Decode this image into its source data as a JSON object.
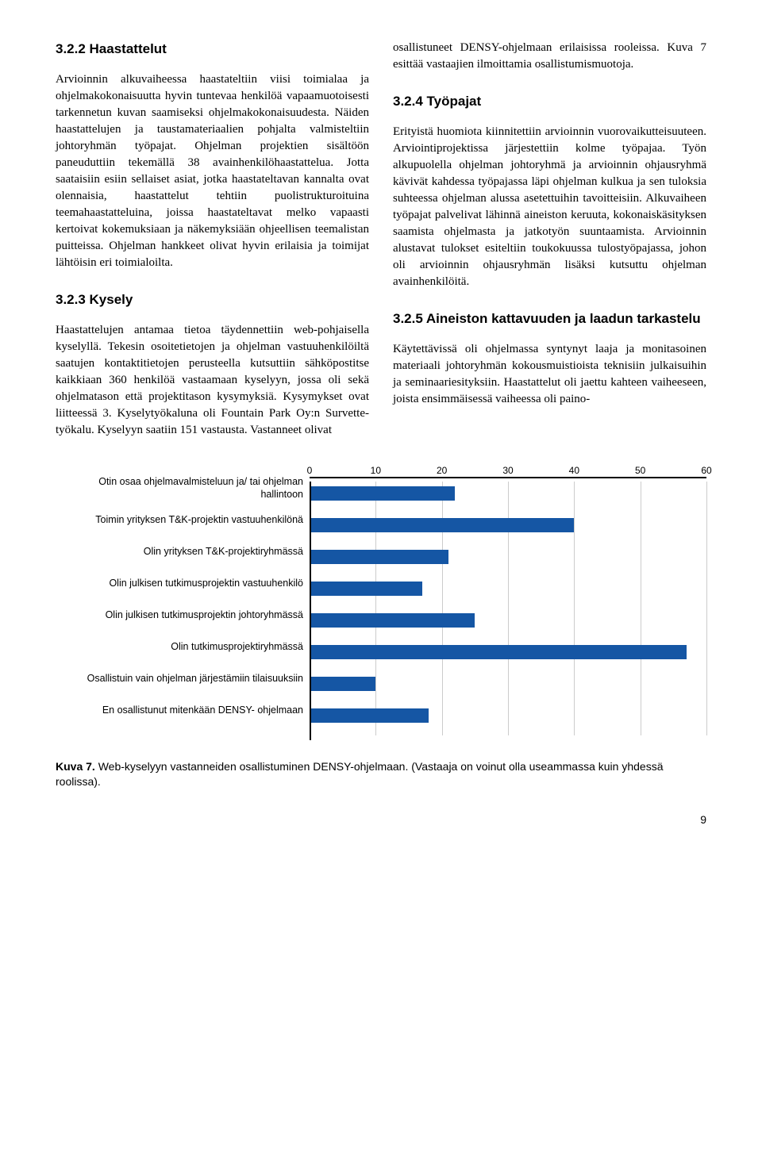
{
  "left": {
    "h1": "3.2.2 Haastattelut",
    "p1": "Arvioinnin alkuvaiheessa haastateltiin viisi toimialaa ja ohjelmakokonaisuutta hyvin tuntevaa henkilöä vapaamuotoisesti tarkennetun kuvan saamiseksi ohjelmakokonaisuudesta. Näiden haastattelujen ja taustamateriaalien pohjalta valmisteltiin johtoryhmän työpajat. Ohjelman projektien sisältöön paneuduttiin tekemällä 38 avainhenkilöhaastattelua. Jotta saataisiin esiin sellaiset asiat, jotka haastateltavan kannalta ovat olennaisia, haastattelut tehtiin puolistrukturoituina teemahaastatteluina, joissa haastateltavat melko vapaasti kertoivat kokemuksiaan ja näkemyksiään ohjeellisen teemalistan puitteissa. Ohjelman hankkeet olivat hyvin erilaisia ja toimijat lähtöisin eri toimialoilta.",
    "h2": "3.2.3 Kysely",
    "p2": "Haastattelujen antamaa tietoa täydennettiin web-pohjaisella kyselyllä. Tekesin osoitetietojen ja ohjelman vastuuhenkilöiltä saatujen kontaktitietojen perusteella kutsuttiin sähköpostitse kaikkiaan 360 henkilöä vastaamaan kyselyyn, jossa oli sekä ohjelmatason että projektitason kysymyksiä. Kysymykset ovat liitteessä 3. Kyselytyökaluna oli Fountain Park Oy:n Survette-työkalu. Kyselyyn saatiin 151 vastausta. Vastanneet olivat"
  },
  "right": {
    "p0": "osallistuneet DENSY-ohjelmaan erilaisissa rooleissa. Kuva 7 esittää vastaajien ilmoittamia osallistumismuotoja.",
    "h1": "3.2.4 Työpajat",
    "p1": "Erityistä huomiota kiinnitettiin arvioinnin vuorovaikutteisuuteen. Arviointiprojektissa järjestettiin kolme työpajaa. Työn alkupuolella ohjelman johtoryhmä ja arvioinnin ohjausryhmä kävivät kahdessa työpajassa läpi ohjelman kulkua ja sen tuloksia suhteessa ohjelman alussa asetettuihin tavoitteisiin. Alkuvaiheen työpajat palvelivat lähinnä aineiston keruuta, kokonaiskäsityksen saamista ohjelmasta ja jatkotyön suuntaamista. Arvioinnin alustavat tulokset esiteltiin toukokuussa tulostyöpajassa, johon oli arvioinnin ohjausryhmän lisäksi kutsuttu ohjelman avainhenkilöitä.",
    "h2": "3.2.5 Aineiston kattavuuden ja laadun tarkastelu",
    "p2": "Käytettävissä oli ohjelmassa syntynyt laaja ja monitasoinen materiaali johtoryhmän kokousmuistioista teknisiin julkaisuihin ja seminaariesityksiin. Haastattelut oli jaettu kahteen vaiheeseen, joista ensimmäisessä vaiheessa oli paino-"
  },
  "chart": {
    "type": "bar",
    "xmax": 60,
    "ticks": [
      0,
      10,
      20,
      30,
      40,
      50,
      60
    ],
    "bar_color": "#1556a4",
    "grid_color": "#cccccc",
    "categories": [
      "Otin osaa ohjelmavalmisteluun ja/ tai ohjelman hallintoon",
      "Toimin yrityksen T&K-projektin vastuuhenkilönä",
      "Olin yrityksen T&K-projektiryhmässä",
      "Olin julkisen tutkimusprojektin vastuuhenkilö",
      "Olin julkisen tutkimusprojektin johtoryhmässä",
      "Olin tutkimusprojektiryhmässä",
      "Osallistuin vain ohjelman järjestämiin tilaisuuksiin",
      "En osallistunut mitenkään DENSY- ohjelmaan"
    ],
    "values": [
      22,
      40,
      21,
      17,
      25,
      57,
      10,
      18
    ]
  },
  "caption_bold": "Kuva 7.",
  "caption_text": " Web-kyselyyn vastanneiden osallistuminen DENSY-ohjelmaan. (Vastaaja on voinut olla useammassa kuin yhdessä roolissa).",
  "page_number": "9"
}
